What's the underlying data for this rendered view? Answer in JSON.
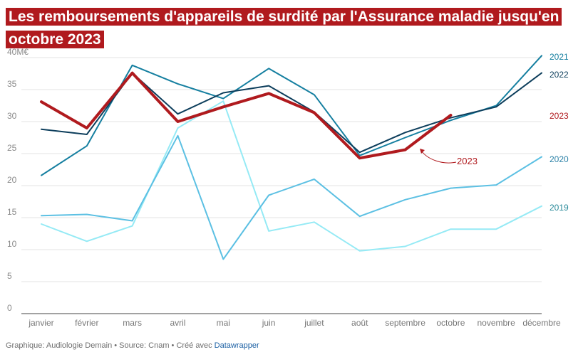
{
  "title": "Les remboursements d'appareils de surdité par l'Assurance maladie jusqu'en octobre 2023",
  "footer": {
    "text": "Graphique: Audiologie Demain • Source: Cnam • Créé avec",
    "link": "Datawrapper"
  },
  "chart_data": {
    "type": "line",
    "title": "Les remboursements d'appareils de surdité par l'Assurance maladie jusqu'en octobre 2023",
    "xlabel": "",
    "ylabel": "",
    "ylim": [
      0,
      40
    ],
    "yticks": [
      0,
      5,
      10,
      15,
      20,
      25,
      30,
      35,
      40
    ],
    "ytick_labels": [
      "0",
      "5",
      "10",
      "15",
      "20",
      "25",
      "30",
      "35",
      "40M€"
    ],
    "categories": [
      "janvier",
      "février",
      "mars",
      "avril",
      "mai",
      "juin",
      "juillet",
      "août",
      "septembre",
      "octobre",
      "novembre",
      "décembre"
    ],
    "series": [
      {
        "name": "2019",
        "color": "#95eaf5",
        "label_color": "#2a8a9a",
        "width": 2,
        "values": [
          14.0,
          11.3,
          13.7,
          29.0,
          33.2,
          12.9,
          14.3,
          9.8,
          10.5,
          13.2,
          13.2,
          16.8
        ]
      },
      {
        "name": "2020",
        "color": "#5cc0e3",
        "label_color": "#2a80a6",
        "width": 2,
        "values": [
          15.3,
          15.5,
          14.5,
          27.8,
          8.5,
          18.5,
          21.0,
          15.2,
          17.8,
          19.6,
          20.1,
          24.5
        ]
      },
      {
        "name": "2021",
        "color": "#157fa0",
        "label_color": "#157fa0",
        "width": 2,
        "values": [
          21.6,
          26.2,
          38.8,
          35.9,
          33.6,
          38.3,
          34.2,
          24.7,
          27.5,
          30.2,
          32.5,
          40.3
        ]
      },
      {
        "name": "2022",
        "color": "#0d3e5c",
        "label_color": "#0d3e5c",
        "width": 2,
        "values": [
          28.8,
          28.0,
          37.6,
          31.2,
          34.5,
          35.6,
          31.5,
          25.2,
          28.3,
          30.6,
          32.3,
          37.6
        ]
      },
      {
        "name": "2023",
        "color": "#b01a1e",
        "label_color": "#b01a1e",
        "width": 4,
        "values": [
          33.1,
          29.0,
          37.6,
          30.0,
          32.3,
          34.4,
          31.4,
          24.3,
          25.6,
          31.0,
          null,
          null
        ]
      }
    ],
    "annotation": {
      "text": "2023",
      "color": "#b01a1e"
    }
  }
}
